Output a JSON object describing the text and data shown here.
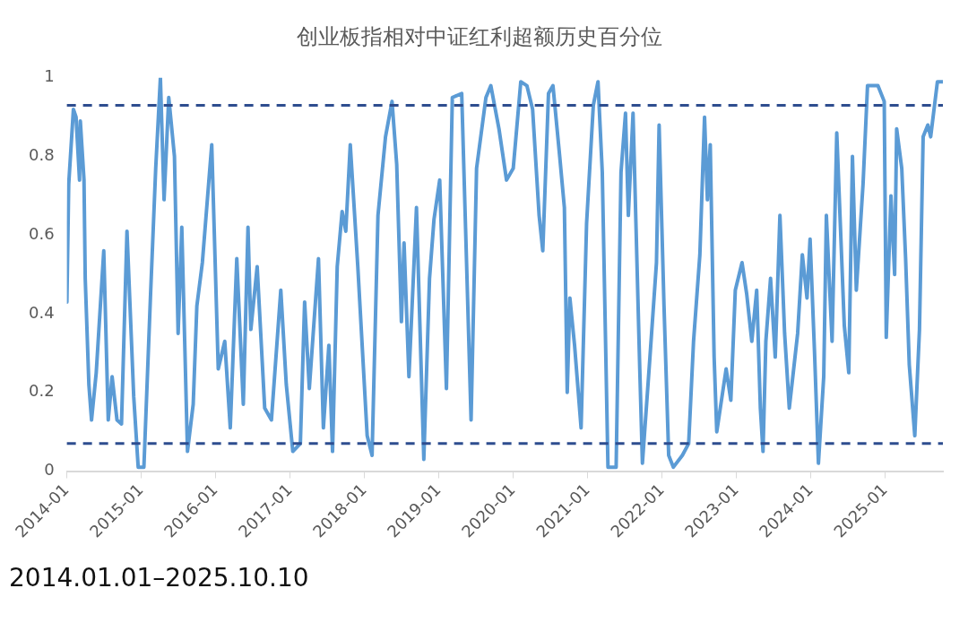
{
  "chart_data": {
    "type": "line",
    "title": "创业板指相对中证红利超额历史百分位",
    "x": [
      "2014-01-01",
      "2014-01-10",
      "2014-02-02",
      "2014-02-15",
      "2014-03-04",
      "2014-03-08",
      "2014-03-26",
      "2014-04-01",
      "2014-04-19",
      "2014-05-02",
      "2014-05-25",
      "2014-07-01",
      "2014-07-23",
      "2014-08-11",
      "2014-09-04",
      "2014-09-26",
      "2014-10-23",
      "2014-11-25",
      "2014-12-17",
      "2015-01-14",
      "2015-02-15",
      "2015-03-13",
      "2015-04-05",
      "2015-04-23",
      "2015-05-16",
      "2015-06-13",
      "2015-07-01",
      "2015-07-19",
      "2015-08-16",
      "2015-09-13",
      "2015-10-01",
      "2015-10-28",
      "2015-12-13",
      "2016-01-14",
      "2016-02-15",
      "2016-03-13",
      "2016-04-14",
      "2016-05-16",
      "2016-06-08",
      "2016-06-22",
      "2016-07-23",
      "2016-08-29",
      "2016-10-01",
      "2016-11-16",
      "2016-12-13",
      "2017-01-14",
      "2017-02-20",
      "2017-03-13",
      "2017-04-05",
      "2017-05-20",
      "2017-06-13",
      "2017-07-10",
      "2017-07-28",
      "2017-08-20",
      "2017-09-13",
      "2017-10-01",
      "2017-10-23",
      "2017-11-29",
      "2018-01-14",
      "2018-02-07",
      "2018-03-08",
      "2018-04-14",
      "2018-05-16",
      "2018-06-08",
      "2018-07-01",
      "2018-07-14",
      "2018-08-07",
      "2018-09-13",
      "2018-10-19",
      "2018-11-16",
      "2018-12-08",
      "2019-01-05",
      "2019-02-07",
      "2019-03-08",
      "2019-04-23",
      "2019-06-08",
      "2019-07-05",
      "2019-08-20",
      "2019-09-13",
      "2019-10-23",
      "2019-11-29",
      "2020-01-01",
      "2020-02-07",
      "2020-03-08",
      "2020-04-05",
      "2020-05-07",
      "2020-05-25",
      "2020-06-22",
      "2020-07-14",
      "2020-08-16",
      "2020-09-08",
      "2020-09-22",
      "2020-10-05",
      "2020-10-28",
      "2020-11-29",
      "2020-12-26",
      "2021-01-28",
      "2021-02-20",
      "2021-03-13",
      "2021-04-10",
      "2021-05-20",
      "2021-06-13",
      "2021-07-05",
      "2021-07-19",
      "2021-08-11",
      "2021-09-13",
      "2021-09-26",
      "2021-11-02",
      "2021-12-04",
      "2021-12-17",
      "2022-01-10",
      "2022-02-02",
      "2022-02-25",
      "2022-04-10",
      "2022-05-11",
      "2022-06-04",
      "2022-07-05",
      "2022-07-28",
      "2022-08-11",
      "2022-08-25",
      "2022-09-13",
      "2022-09-26",
      "2022-11-11",
      "2022-12-04",
      "2022-12-26",
      "2023-01-28",
      "2023-02-20",
      "2023-03-17",
      "2023-04-10",
      "2023-04-28",
      "2023-05-11",
      "2023-05-25",
      "2023-06-17",
      "2023-07-10",
      "2023-08-02",
      "2023-08-25",
      "2023-09-17",
      "2023-10-28",
      "2023-11-20",
      "2023-12-13",
      "2023-12-28",
      "2024-01-19",
      "2024-02-07",
      "2024-03-04",
      "2024-03-17",
      "2024-04-14",
      "2024-05-07",
      "2024-06-13",
      "2024-07-05",
      "2024-07-23",
      "2024-08-11",
      "2024-09-13",
      "2024-10-05",
      "2024-11-25",
      "2024-12-26",
      "2025-01-05",
      "2025-01-28",
      "2025-02-15",
      "2025-02-25",
      "2025-03-22",
      "2025-04-10",
      "2025-04-28",
      "2025-05-25",
      "2025-06-17",
      "2025-07-05",
      "2025-07-28",
      "2025-08-11",
      "2025-09-13",
      "2025-10-10"
    ],
    "series": [
      {
        "color": "#5b9bd5",
        "values": [
          0.43,
          0.73,
          0.92,
          0.9,
          0.74,
          0.89,
          0.74,
          0.49,
          0.22,
          0.13,
          0.25,
          0.56,
          0.13,
          0.24,
          0.13,
          0.12,
          0.61,
          0.19,
          0.01,
          0.01,
          0.44,
          0.77,
          1.0,
          0.69,
          0.95,
          0.8,
          0.35,
          0.62,
          0.05,
          0.17,
          0.42,
          0.53,
          0.83,
          0.26,
          0.33,
          0.11,
          0.54,
          0.17,
          0.62,
          0.36,
          0.52,
          0.16,
          0.13,
          0.46,
          0.22,
          0.05,
          0.07,
          0.43,
          0.21,
          0.54,
          0.11,
          0.32,
          0.05,
          0.52,
          0.66,
          0.61,
          0.83,
          0.52,
          0.09,
          0.04,
          0.65,
          0.85,
          0.94,
          0.78,
          0.38,
          0.58,
          0.24,
          0.67,
          0.03,
          0.49,
          0.64,
          0.74,
          0.21,
          0.95,
          0.96,
          0.13,
          0.77,
          0.95,
          0.98,
          0.87,
          0.74,
          0.77,
          0.99,
          0.98,
          0.92,
          0.65,
          0.56,
          0.96,
          0.98,
          0.8,
          0.67,
          0.2,
          0.44,
          0.32,
          0.11,
          0.63,
          0.93,
          0.99,
          0.76,
          0.01,
          0.01,
          0.76,
          0.91,
          0.65,
          0.91,
          0.26,
          0.02,
          0.29,
          0.53,
          0.88,
          0.42,
          0.04,
          0.01,
          0.04,
          0.07,
          0.33,
          0.55,
          0.9,
          0.69,
          0.83,
          0.29,
          0.1,
          0.26,
          0.18,
          0.46,
          0.53,
          0.45,
          0.33,
          0.46,
          0.16,
          0.05,
          0.33,
          0.49,
          0.29,
          0.65,
          0.35,
          0.16,
          0.35,
          0.55,
          0.44,
          0.59,
          0.3,
          0.02,
          0.24,
          0.65,
          0.33,
          0.86,
          0.37,
          0.25,
          0.8,
          0.46,
          0.73,
          0.98,
          0.98,
          0.94,
          0.34,
          0.7,
          0.5,
          0.87,
          0.77,
          0.54,
          0.27,
          0.09,
          0.36,
          0.85,
          0.88,
          0.85,
          0.99,
          0.99
        ]
      }
    ],
    "xlim": [
      "2014-01-01",
      "2025-10-10"
    ],
    "xticks": [
      "2014-01",
      "2015-01",
      "2016-01",
      "2017-01",
      "2018-01",
      "2019-01",
      "2020-01",
      "2021-01",
      "2022-01",
      "2023-01",
      "2024-01",
      "2025-01"
    ],
    "ylim": [
      0,
      1
    ],
    "yticks": [
      0,
      0.2,
      0.4,
      0.6,
      0.8,
      1
    ],
    "ref_lines": [
      {
        "axis": "y",
        "value": 0.93,
        "color": "#2e4d8f",
        "line_style": "dashed"
      },
      {
        "axis": "y",
        "value": 0.07,
        "color": "#2e4d8f",
        "line_style": "dashed"
      }
    ],
    "marker": "none",
    "line_style": "solid",
    "legend": false,
    "annotations": [
      "2014.01.01–2025.10.10"
    ]
  }
}
